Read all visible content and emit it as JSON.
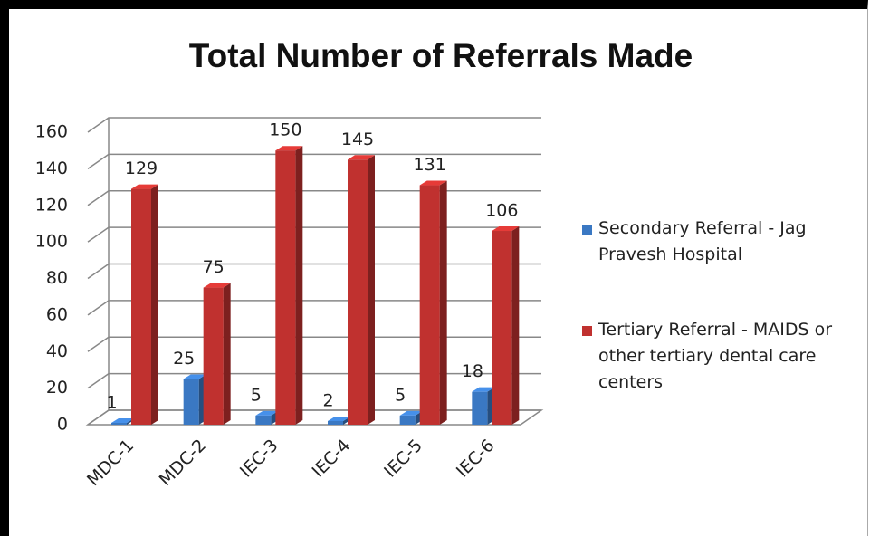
{
  "chart_data": {
    "type": "bar3d",
    "title": "Total Number of Referrals Made",
    "categories": [
      "MDC-1",
      "MDC-2",
      "IEC-3",
      "IEC-4",
      "IEC-5",
      "IEC-6"
    ],
    "series": [
      {
        "name": "Secondary Referral - Jag Pravesh Hospital",
        "color": "#3a78c3",
        "values": [
          1,
          25,
          5,
          2,
          5,
          18
        ]
      },
      {
        "name": "Tertiary Referral - MAIDS or other tertiary dental care centers",
        "color": "#c0312f",
        "values": [
          129,
          75,
          150,
          145,
          131,
          106
        ]
      }
    ],
    "ylim": [
      0,
      160
    ],
    "yticks": [
      0,
      20,
      40,
      60,
      80,
      100,
      120,
      140,
      160
    ],
    "grid": true,
    "legend": "right"
  }
}
